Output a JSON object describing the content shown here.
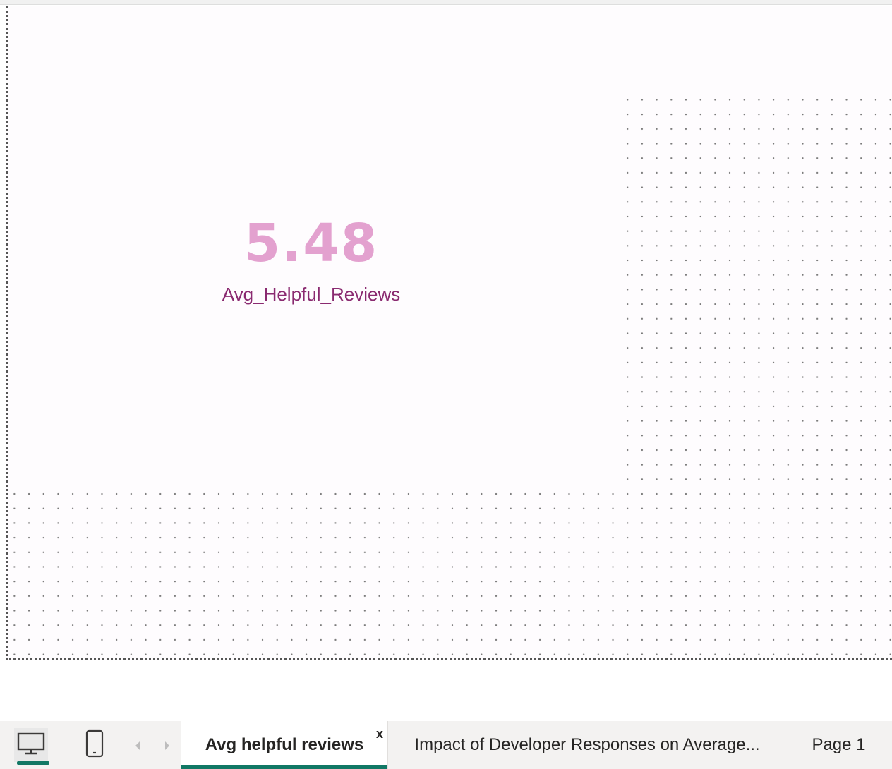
{
  "card": {
    "value": "5.48",
    "label": "Avg_Helpful_Reviews",
    "value_color": "#e3a1cf",
    "label_color": "#8a2a70"
  },
  "view_buttons": {
    "desktop": "desktop-layout-icon",
    "mobile": "mobile-layout-icon"
  },
  "nav": {
    "prev_icon": "chevron-left-icon",
    "next_icon": "chevron-right-icon"
  },
  "tabs": [
    {
      "label": "Avg helpful reviews",
      "active": true,
      "close": "x"
    },
    {
      "label": "Impact of Developer Responses on Average...",
      "active": false
    },
    {
      "label": "Page 1",
      "active": false
    }
  ],
  "colors": {
    "accent": "#117865",
    "tabbar_bg": "#f3f2f1"
  }
}
